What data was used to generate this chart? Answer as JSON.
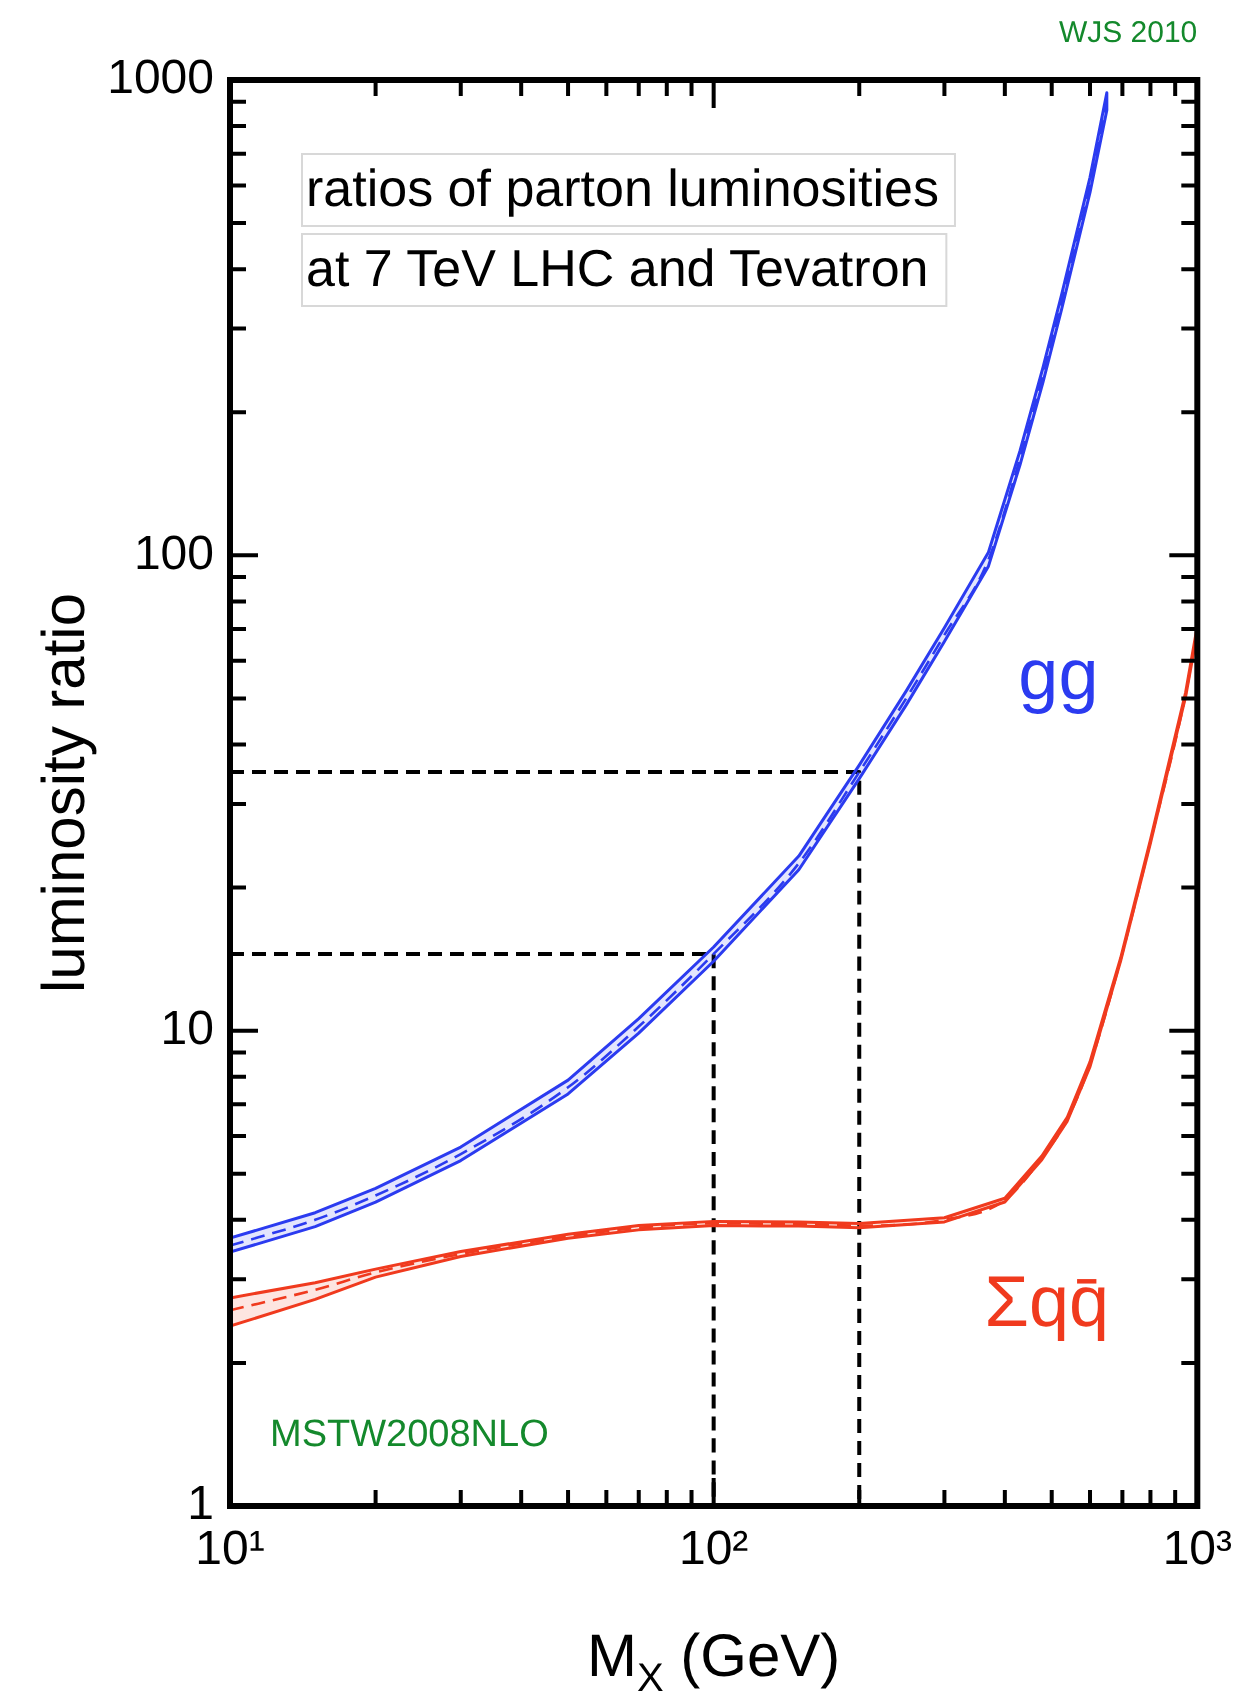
{
  "chart_data": {
    "type": "line",
    "title": "ratios of parton luminosities\nat 7 TeV LHC and Tevatron",
    "xlabel": "M$_{X}$ (GeV)",
    "ylabel": "luminosity ratio",
    "log": "xy",
    "xlim": [
      10,
      1000
    ],
    "xticks": [
      {
        "value": 10,
        "label": "10¹"
      },
      {
        "value": 20,
        "label": null
      },
      {
        "value": 30,
        "label": null
      },
      {
        "value": 40,
        "label": null
      },
      {
        "value": 50,
        "label": null
      },
      {
        "value": 60,
        "label": null
      },
      {
        "value": 70,
        "label": null
      },
      {
        "value": 80,
        "label": null
      },
      {
        "value": 90,
        "label": null
      },
      {
        "value": 100,
        "label": "10²"
      },
      {
        "value": 200,
        "label": null
      },
      {
        "value": 300,
        "label": null
      },
      {
        "value": 400,
        "label": null
      },
      {
        "value": 500,
        "label": null
      },
      {
        "value": 600,
        "label": null
      },
      {
        "value": 700,
        "label": null
      },
      {
        "value": 800,
        "label": null
      },
      {
        "value": 900,
        "label": null
      },
      {
        "value": 1000,
        "label": "10³"
      }
    ],
    "ylim": [
      1,
      1000
    ],
    "yticks": [
      1,
      {
        "value": 2,
        "label": null
      },
      {
        "value": 3,
        "label": null
      },
      {
        "value": 4,
        "label": null
      },
      {
        "value": 5,
        "label": null
      },
      {
        "value": 6,
        "label": null
      },
      {
        "value": 7,
        "label": null
      },
      {
        "value": 8,
        "label": null
      },
      {
        "value": 9,
        "label": null
      },
      10,
      {
        "value": 20,
        "label": null
      },
      {
        "value": 30,
        "label": null
      },
      {
        "value": 40,
        "label": null
      },
      {
        "value": 50,
        "label": null
      },
      {
        "value": 60,
        "label": null
      },
      {
        "value": 70,
        "label": null
      },
      {
        "value": 80,
        "label": null
      },
      {
        "value": 90,
        "label": null
      },
      100,
      {
        "value": 200,
        "label": null
      },
      {
        "value": 300,
        "label": null
      },
      {
        "value": 400,
        "label": null
      },
      {
        "value": 500,
        "label": null
      },
      {
        "value": 600,
        "label": null
      },
      {
        "value": 700,
        "label": null
      },
      {
        "value": 800,
        "label": null
      },
      {
        "value": 900,
        "label": null
      },
      1000
    ],
    "series": [
      {
        "name": "gg",
        "color": "#2b3bf0",
        "line_style": "dashed",
        "x": [
          10,
          15,
          20,
          30,
          50,
          70,
          100,
          150,
          200,
          250,
          300,
          370,
          430,
          480,
          524,
          600,
          650
        ],
        "values": [
          3.53,
          4.0,
          4.5,
          5.5,
          7.6,
          10.2,
          14.5,
          22.5,
          35,
          50,
          68,
          98,
          160,
          240,
          340,
          600,
          900
        ],
        "upper": [
          3.66,
          4.14,
          4.66,
          5.69,
          7.87,
          10.6,
          15.0,
          23.3,
          36.2,
          51.8,
          70.4,
          101.5,
          166,
          249,
          353,
          624,
          940
        ],
        "lower": [
          3.42,
          3.87,
          4.36,
          5.33,
          7.36,
          9.88,
          14.0,
          21.8,
          33.9,
          48.4,
          65.9,
          94.9,
          155,
          232,
          329,
          580,
          864
        ]
      },
      {
        "name": "Σqq̄",
        "color": "#f03a1e",
        "line_style": "dashed",
        "x": [
          10,
          15,
          20,
          30,
          50,
          70,
          100,
          150,
          200,
          300,
          400,
          477,
          538,
          600,
          694,
          800,
          946,
          1000
        ],
        "values": [
          2.58,
          2.85,
          3.1,
          3.39,
          3.69,
          3.85,
          3.93,
          3.92,
          3.89,
          4.0,
          4.4,
          5.4,
          6.5,
          8.5,
          14.1,
          25,
          51,
          70
        ],
        "upper": [
          2.74,
          2.95,
          3.15,
          3.43,
          3.73,
          3.89,
          3.97,
          3.96,
          3.93,
          4.04,
          4.44,
          5.45,
          6.56,
          8.6,
          14.2,
          25.2,
          51.5,
          71
        ],
        "lower": [
          2.39,
          2.72,
          3.03,
          3.35,
          3.66,
          3.81,
          3.89,
          3.88,
          3.85,
          3.96,
          4.36,
          5.35,
          6.44,
          8.4,
          14.0,
          24.8,
          50.5,
          69
        ]
      },
      {
        "color": "#000000",
        "line_style": "dashed",
        "x": [
          10,
          100,
          100
        ],
        "values": [
          14.5,
          14.5,
          1
        ]
      },
      {
        "color": "#000000",
        "line_style": "dashed",
        "x": [
          10,
          200,
          200
        ],
        "values": [
          35,
          35,
          1
        ]
      }
    ],
    "annotations": [
      "WJS 2010",
      "MSTW2008NLO"
    ]
  }
}
